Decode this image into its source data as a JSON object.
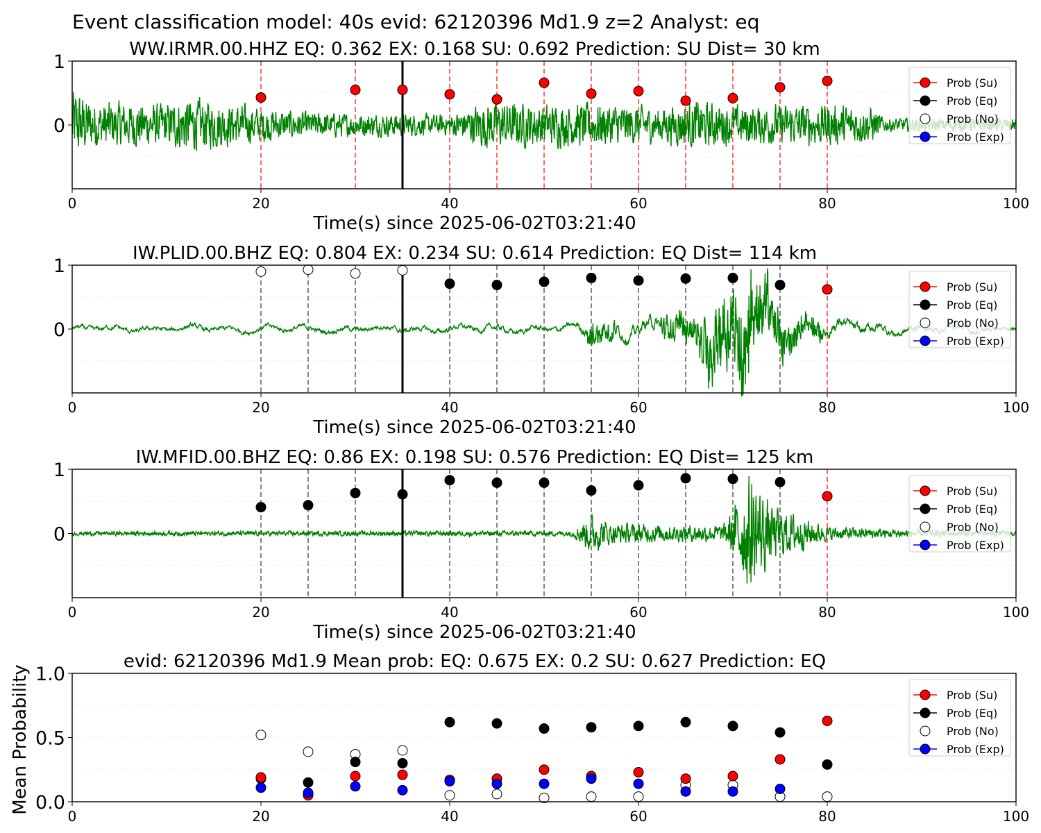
{
  "suptitle": "Event classification model: 40s evid: 62120396 Md1.9 z=2 Analyst: eq",
  "colors": {
    "su": "#ff0000",
    "eq": "#000000",
    "no": "#ffffff",
    "exp": "#0000ff",
    "waveform": "#008000"
  },
  "legend": [
    "Prob (Su)",
    "Prob (Eq)",
    "Prob (No)",
    "Prob (Exp)"
  ],
  "chart_data": [
    {
      "type": "line",
      "title": "WW.IRMR.00.HHZ   EQ: 0.362  EX: 0.168  SU: 0.692   Prediction: SU    Dist= 30 km",
      "xlabel": "Time(s) since 2025-06-02T03:21:40",
      "ylabel": "",
      "xlim": [
        0,
        100
      ],
      "ylim": [
        -1,
        1
      ],
      "xticks": [
        "0",
        "20",
        "40",
        "60",
        "80",
        "100"
      ],
      "yticks": [
        "0",
        "1"
      ],
      "pick_time": 35,
      "waveform": {
        "name": "",
        "color": "green",
        "style": "noisy",
        "amp_profile": [
          [
            0,
            0.55
          ],
          [
            2,
            0.35
          ],
          [
            10,
            0.3
          ],
          [
            12,
            0.4
          ],
          [
            17,
            0.3
          ],
          [
            25,
            0.18
          ],
          [
            40,
            0.15
          ],
          [
            44,
            0.35
          ],
          [
            50,
            0.3
          ],
          [
            56,
            0.32
          ],
          [
            62,
            0.25
          ],
          [
            66,
            0.35
          ],
          [
            70,
            0.28
          ],
          [
            80,
            0.3
          ],
          [
            85,
            0.25
          ],
          [
            86,
            0.1
          ],
          [
            100,
            0.1
          ]
        ]
      },
      "windows": [
        {
          "t": 20,
          "label": "Su",
          "p": 0.43
        },
        {
          "t": 30,
          "label": "Su",
          "p": 0.55
        },
        {
          "t": 35,
          "label": "Su",
          "p": 0.55
        },
        {
          "t": 40,
          "label": "Su",
          "p": 0.48
        },
        {
          "t": 45,
          "label": "Su",
          "p": 0.4
        },
        {
          "t": 50,
          "label": "Su",
          "p": 0.66
        },
        {
          "t": 55,
          "label": "Su",
          "p": 0.49
        },
        {
          "t": 60,
          "label": "Su",
          "p": 0.53
        },
        {
          "t": 65,
          "label": "Su",
          "p": 0.38
        },
        {
          "t": 70,
          "label": "Su",
          "p": 0.42
        },
        {
          "t": 75,
          "label": "Su",
          "p": 0.59
        },
        {
          "t": 80,
          "label": "Su",
          "p": 0.69
        }
      ]
    },
    {
      "type": "line",
      "title": "IW.PLID.00.BHZ   EQ: 0.804  EX: 0.234  SU: 0.614   Prediction: EQ    Dist= 114 km",
      "xlabel": "Time(s) since 2025-06-02T03:21:40",
      "ylabel": "",
      "xlim": [
        0,
        100
      ],
      "ylim": [
        -1,
        1
      ],
      "xticks": [
        "0",
        "20",
        "40",
        "60",
        "80",
        "100"
      ],
      "yticks": [
        "0",
        "1"
      ],
      "pick_time": 35,
      "waveform": {
        "name": "",
        "color": "green",
        "style": "smooth",
        "amp_profile": [
          [
            0,
            0.05
          ],
          [
            53,
            0.06
          ],
          [
            55,
            0.18
          ],
          [
            60,
            0.12
          ],
          [
            66,
            0.2
          ],
          [
            67,
            0.4
          ],
          [
            70,
            0.5
          ],
          [
            71,
            0.9
          ],
          [
            73,
            0.45
          ],
          [
            77,
            0.18
          ],
          [
            82,
            0.12
          ],
          [
            90,
            0.07
          ],
          [
            100,
            0.05
          ]
        ]
      },
      "windows": [
        {
          "t": 20,
          "label": "No",
          "p": 0.9
        },
        {
          "t": 25,
          "label": "No",
          "p": 0.93
        },
        {
          "t": 30,
          "label": "No",
          "p": 0.87
        },
        {
          "t": 35,
          "label": "No",
          "p": 0.92
        },
        {
          "t": 40,
          "label": "Eq",
          "p": 0.71
        },
        {
          "t": 45,
          "label": "Eq",
          "p": 0.69
        },
        {
          "t": 50,
          "label": "Eq",
          "p": 0.74
        },
        {
          "t": 55,
          "label": "Eq",
          "p": 0.8
        },
        {
          "t": 60,
          "label": "Eq",
          "p": 0.76
        },
        {
          "t": 65,
          "label": "Eq",
          "p": 0.79
        },
        {
          "t": 70,
          "label": "Eq",
          "p": 0.8
        },
        {
          "t": 75,
          "label": "Eq",
          "p": 0.69
        },
        {
          "t": 80,
          "label": "Su",
          "p": 0.62
        }
      ]
    },
    {
      "type": "line",
      "title": "IW.MFID.00.BHZ   EQ: 0.86  EX: 0.198  SU: 0.576   Prediction: EQ    Dist= 125 km",
      "xlabel": "Time(s) since 2025-06-02T03:21:40",
      "ylabel": "",
      "xlim": [
        0,
        100
      ],
      "ylim": [
        -1,
        1
      ],
      "xticks": [
        "0",
        "20",
        "40",
        "60",
        "80",
        "100"
      ],
      "yticks": [
        "0",
        "1"
      ],
      "pick_time": 35,
      "waveform": {
        "name": "",
        "color": "green",
        "style": "noisy",
        "amp_profile": [
          [
            0,
            0.03
          ],
          [
            53,
            0.04
          ],
          [
            55,
            0.3
          ],
          [
            57,
            0.15
          ],
          [
            64,
            0.12
          ],
          [
            69,
            0.12
          ],
          [
            70,
            0.35
          ],
          [
            72,
            0.9
          ],
          [
            74,
            0.4
          ],
          [
            77,
            0.25
          ],
          [
            80,
            0.1
          ],
          [
            90,
            0.05
          ],
          [
            100,
            0.04
          ]
        ]
      },
      "windows": [
        {
          "t": 20,
          "label": "Eq",
          "p": 0.41
        },
        {
          "t": 25,
          "label": "Eq",
          "p": 0.44
        },
        {
          "t": 30,
          "label": "Eq",
          "p": 0.63
        },
        {
          "t": 35,
          "label": "Eq",
          "p": 0.61
        },
        {
          "t": 40,
          "label": "Eq",
          "p": 0.83
        },
        {
          "t": 45,
          "label": "Eq",
          "p": 0.79
        },
        {
          "t": 50,
          "label": "Eq",
          "p": 0.79
        },
        {
          "t": 55,
          "label": "Eq",
          "p": 0.67
        },
        {
          "t": 60,
          "label": "Eq",
          "p": 0.75
        },
        {
          "t": 65,
          "label": "Eq",
          "p": 0.86
        },
        {
          "t": 70,
          "label": "Eq",
          "p": 0.85
        },
        {
          "t": 75,
          "label": "Eq",
          "p": 0.8
        },
        {
          "t": 80,
          "label": "Su",
          "p": 0.58
        }
      ]
    },
    {
      "type": "scatter",
      "title": "evid: 62120396  Md1.9   Mean prob:   EQ: 0.675  EX: 0.2  SU: 0.627   Prediction: EQ",
      "xlabel": "",
      "ylabel": "Mean Probability",
      "xlim": [
        0,
        100
      ],
      "ylim": [
        0,
        1
      ],
      "xticks": [
        "0",
        "20",
        "40",
        "60",
        "80",
        "100"
      ],
      "yticks": [
        "0.0",
        "0.5",
        "1.0"
      ],
      "x": [
        20,
        25,
        30,
        35,
        40,
        45,
        50,
        55,
        60,
        65,
        70,
        75,
        80
      ],
      "series": [
        {
          "name": "Prob (Su)",
          "values": [
            0.19,
            0.05,
            0.2,
            0.21,
            0.17,
            0.18,
            0.25,
            0.2,
            0.23,
            0.18,
            0.2,
            0.33,
            0.63
          ]
        },
        {
          "name": "Prob (Eq)",
          "values": [
            0.18,
            0.15,
            0.31,
            0.3,
            0.62,
            0.61,
            0.57,
            0.58,
            0.59,
            0.62,
            0.59,
            0.54,
            0.29
          ]
        },
        {
          "name": "Prob (No)",
          "values": [
            0.52,
            0.39,
            0.37,
            0.4,
            0.05,
            0.06,
            0.03,
            0.04,
            0.04,
            0.13,
            0.13,
            0.04,
            0.04
          ]
        },
        {
          "name": "Prob (Exp)",
          "values": [
            0.11,
            0.07,
            0.12,
            0.09,
            0.16,
            0.14,
            0.14,
            0.18,
            0.14,
            0.08,
            0.08,
            0.1,
            null
          ]
        }
      ]
    }
  ]
}
